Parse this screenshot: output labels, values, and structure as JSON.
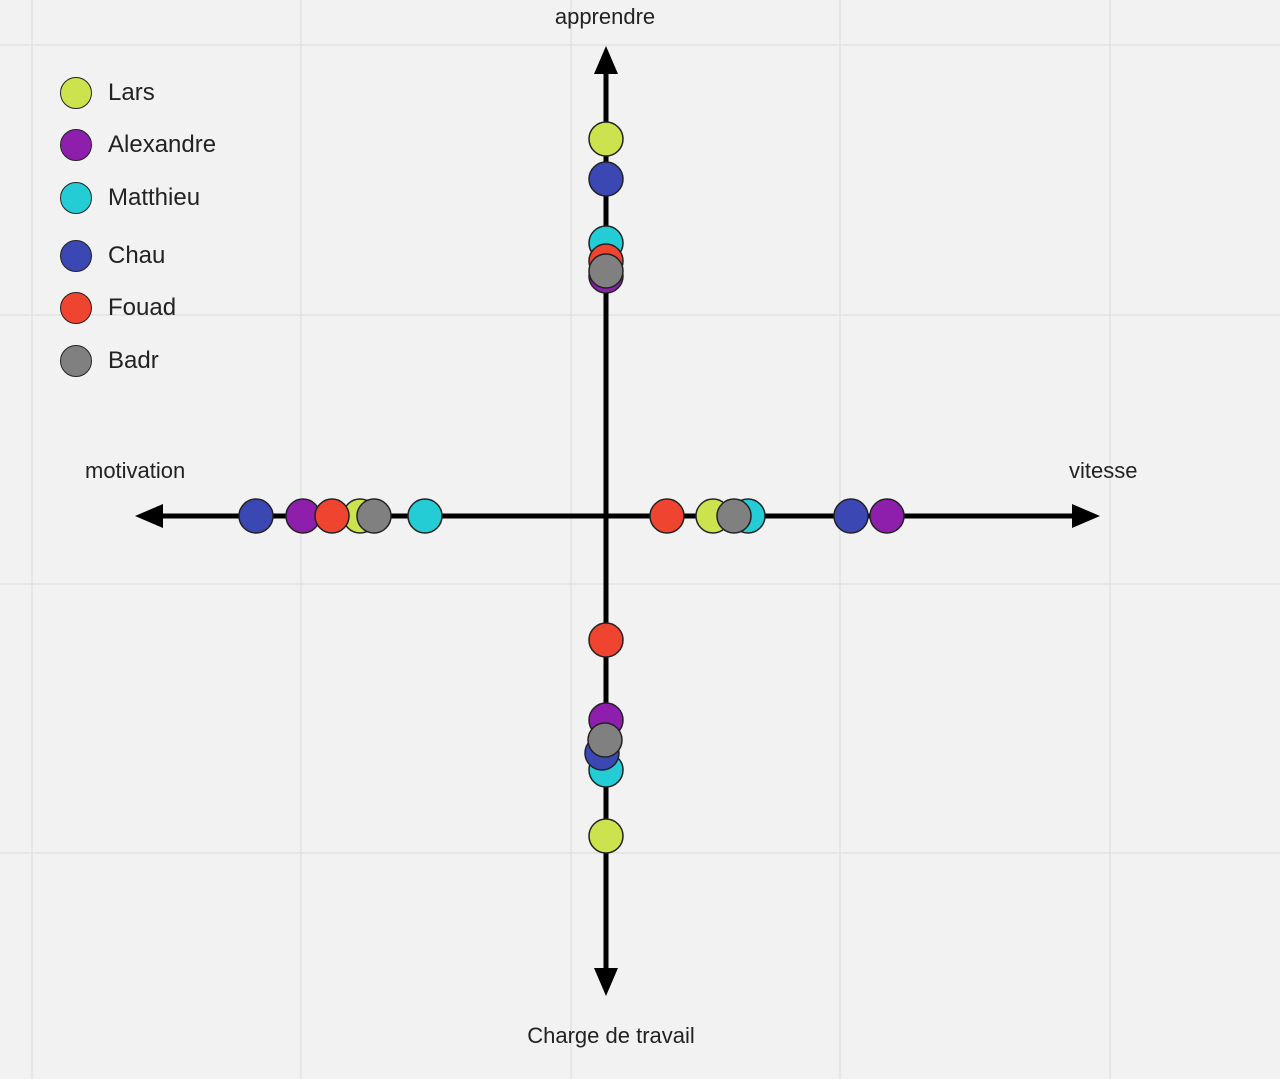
{
  "axes": {
    "top": "apprendre",
    "bottom": "Charge de travail",
    "left": "motivation",
    "right": "vitesse"
  },
  "legend": [
    {
      "name": "Lars",
      "color": "#cde34e"
    },
    {
      "name": "Alexandre",
      "color": "#8e1fac"
    },
    {
      "name": "Matthieu",
      "color": "#24cdd6"
    },
    {
      "name": "Chau",
      "color": "#3b47b3"
    },
    {
      "name": "Fouad",
      "color": "#ef4430"
    },
    {
      "name": "Badr",
      "color": "#808080"
    }
  ],
  "colors": {
    "background": "#f2f2f2",
    "grid": "#e2e2e2",
    "axis": "#000000"
  },
  "markers": {
    "apprendre": [
      {
        "person": "Lars"
      },
      {
        "person": "Chau"
      },
      {
        "person": "Matthieu"
      },
      {
        "person": "Alexandre"
      },
      {
        "person": "Fouad"
      },
      {
        "person": "Badr"
      }
    ],
    "charge_de_travail": [
      {
        "person": "Fouad"
      },
      {
        "person": "Alexandre"
      },
      {
        "person": "Lars"
      },
      {
        "person": "Matthieu"
      },
      {
        "person": "Chau"
      },
      {
        "person": "Badr"
      }
    ],
    "motivation": [
      {
        "person": "Chau"
      },
      {
        "person": "Alexandre"
      },
      {
        "person": "Lars"
      },
      {
        "person": "Fouad"
      },
      {
        "person": "Badr"
      },
      {
        "person": "Matthieu"
      }
    ],
    "vitesse": [
      {
        "person": "Fouad"
      },
      {
        "person": "Lars"
      },
      {
        "person": "Matthieu"
      },
      {
        "person": "Badr"
      },
      {
        "person": "Chau"
      },
      {
        "person": "Alexandre"
      }
    ]
  }
}
